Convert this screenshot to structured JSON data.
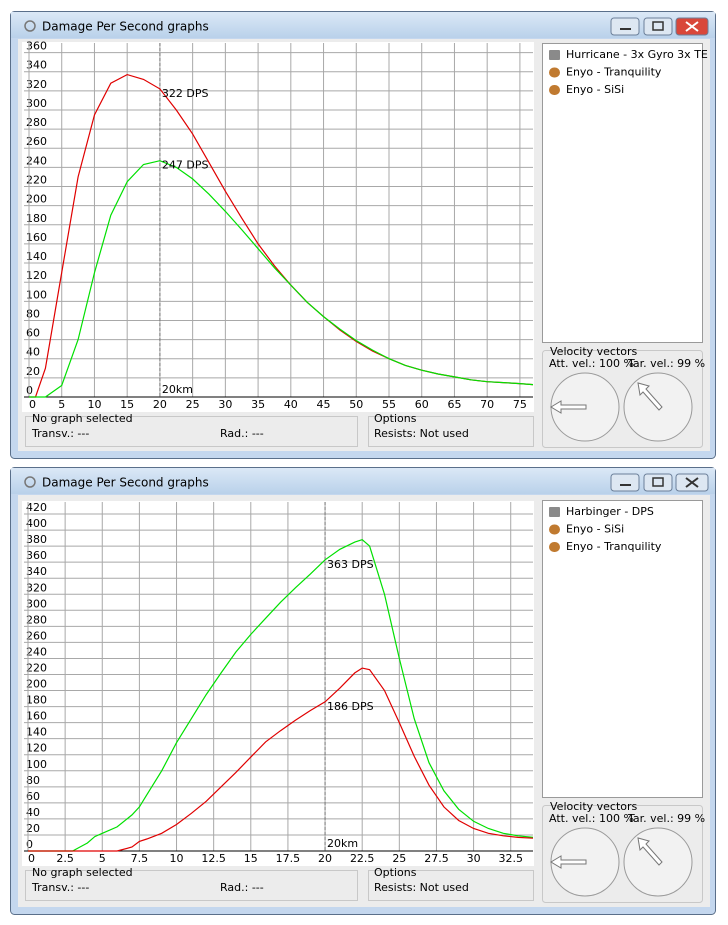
{
  "windows": [
    {
      "title": "Damage Per Second graphs",
      "fits": [
        "Hurricane - 3x Gyro 3x TE",
        "Enyo - Tranquility",
        "Enyo - SiSi"
      ],
      "velocity": {
        "title": "Velocity vectors",
        "attacker": "Att. vel.: 100 %",
        "target": "Tar. vel.: 99 %"
      },
      "status": {
        "selection": "No graph selected",
        "transversal": "Transv.: ---",
        "radial": "Rad.: ---"
      },
      "options": {
        "title": "Options",
        "resists": "Resists: Not used"
      }
    },
    {
      "title": "Damage Per Second graphs",
      "fits": [
        "Harbinger - DPS",
        "Enyo - SiSi",
        "Enyo - Tranquility"
      ],
      "velocity": {
        "title": "Velocity vectors",
        "attacker": "Att. vel.: 100 %",
        "target": "Tar. vel.: 99 %"
      },
      "status": {
        "selection": "No graph selected",
        "transversal": "Transv.: ---",
        "radial": "Rad.: ---"
      },
      "options": {
        "title": "Options",
        "resists": "Resists: Not used"
      }
    }
  ],
  "chart_data": [
    {
      "type": "line",
      "grid": true,
      "xlim": [
        0,
        77
      ],
      "ylim": [
        0,
        370
      ],
      "xticks": [
        0,
        5,
        10,
        15,
        20,
        25,
        30,
        35,
        40,
        45,
        50,
        55,
        60,
        65,
        70,
        75
      ],
      "yticks": [
        0,
        20,
        40,
        60,
        80,
        100,
        120,
        140,
        160,
        180,
        200,
        220,
        240,
        260,
        280,
        300,
        320,
        340,
        360
      ],
      "marker": {
        "value": 20,
        "label": "20km"
      },
      "annotations": [
        {
          "x": 20,
          "value": 322,
          "label": "322 DPS"
        },
        {
          "x": 20,
          "value": 247,
          "label": "247 DPS"
        }
      ],
      "x": [
        0,
        1,
        2.5,
        5,
        7.5,
        10,
        12.5,
        15,
        17.5,
        20,
        22.5,
        25,
        27.5,
        30,
        32.5,
        35,
        37.5,
        40,
        42.5,
        45,
        47.5,
        50,
        52.5,
        55,
        57.5,
        60,
        62.5,
        65,
        67.5,
        70,
        72.5,
        75,
        77
      ],
      "series": [
        {
          "color": "#e00000",
          "values": [
            0,
            0,
            30,
            130,
            230,
            295,
            328,
            337,
            332,
            322,
            300,
            275,
            245,
            215,
            187,
            160,
            137,
            117,
            99,
            84,
            70,
            58,
            48,
            40,
            33,
            28,
            24,
            21,
            18,
            16,
            15,
            14,
            13
          ]
        },
        {
          "color": "#00e000",
          "values": [
            0,
            0,
            0,
            12,
            60,
            130,
            190,
            225,
            243,
            247,
            240,
            228,
            212,
            194,
            175,
            155,
            135,
            117,
            99,
            84,
            71,
            59,
            49,
            40,
            33,
            28,
            24,
            21,
            18,
            16,
            15,
            14,
            13
          ]
        }
      ]
    },
    {
      "type": "line",
      "grid": true,
      "xlim": [
        0,
        34
      ],
      "ylim": [
        0,
        435
      ],
      "xticks": [
        0,
        2.5,
        5,
        7.5,
        10,
        12.5,
        15,
        17.5,
        20,
        22.5,
        25,
        27.5,
        30,
        32.5
      ],
      "yticks": [
        0,
        20,
        40,
        60,
        80,
        100,
        120,
        140,
        160,
        180,
        200,
        220,
        240,
        260,
        280,
        300,
        320,
        340,
        360,
        380,
        400,
        420
      ],
      "marker": {
        "value": 20,
        "label": "20km"
      },
      "annotations": [
        {
          "x": 20,
          "value": 363,
          "label": "363 DPS"
        },
        {
          "x": 20,
          "value": 186,
          "label": "186 DPS"
        }
      ],
      "x": [
        0,
        3,
        3.5,
        4,
        4.5,
        5,
        6,
        7,
        7.5,
        8,
        9,
        10,
        11,
        12,
        13,
        14,
        15,
        16,
        17,
        18,
        19,
        20,
        21,
        22,
        22.5,
        23,
        24,
        25,
        26,
        27,
        28,
        29,
        30,
        31,
        32,
        33,
        34
      ],
      "series": [
        {
          "color": "#00e000",
          "values": [
            0,
            0,
            5,
            10,
            18,
            22,
            30,
            45,
            55,
            70,
            100,
            135,
            165,
            195,
            222,
            248,
            270,
            290,
            310,
            328,
            345,
            363,
            376,
            385,
            388,
            380,
            320,
            240,
            165,
            110,
            75,
            52,
            37,
            28,
            22,
            19,
            17
          ]
        },
        {
          "color": "#e00000",
          "values": [
            0,
            0,
            0,
            0,
            0,
            0,
            0,
            5,
            12,
            15,
            22,
            33,
            47,
            62,
            80,
            98,
            117,
            136,
            150,
            163,
            175,
            186,
            203,
            222,
            228,
            226,
            200,
            160,
            118,
            82,
            55,
            38,
            28,
            22,
            19,
            17,
            16
          ]
        }
      ]
    }
  ]
}
